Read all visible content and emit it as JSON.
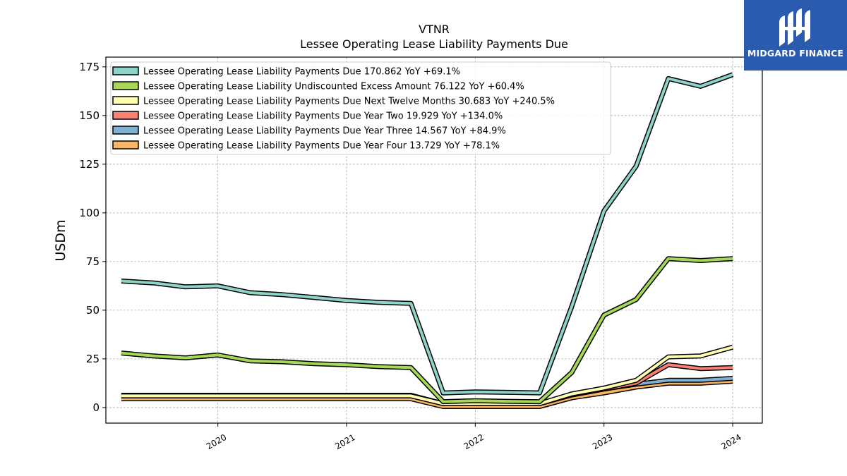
{
  "brand": {
    "name": "MIDGARD FINANCE",
    "bg_color": "#2a5bae"
  },
  "chart_data": {
    "type": "line",
    "title": "VTNR",
    "subtitle": "Lessee Operating Lease Liability Payments Due",
    "ylabel": "USDm",
    "xlabel": "",
    "ylim": [
      -8,
      180
    ],
    "xlim": [
      2019.13,
      2024.23
    ],
    "yticks": [
      0,
      25,
      50,
      75,
      100,
      125,
      150,
      175
    ],
    "xticks": [
      {
        "value": 2020.0,
        "label": "2020"
      },
      {
        "value": 2021.0,
        "label": "2021"
      },
      {
        "value": 2022.0,
        "label": "2022"
      },
      {
        "value": 2023.0,
        "label": "2023"
      },
      {
        "value": 2024.0,
        "label": "2024"
      }
    ],
    "grid": true,
    "legend_position": "top-left",
    "x": [
      2019.25,
      2019.5,
      2019.75,
      2020.0,
      2020.25,
      2020.5,
      2020.75,
      2021.0,
      2021.25,
      2021.5,
      2021.75,
      2022.0,
      2022.25,
      2022.5,
      2022.75,
      2023.0,
      2023.25,
      2023.5,
      2023.75,
      2024.0
    ],
    "series": [
      {
        "name": "Lessee Operating Lease Liability Payments Due",
        "legend": "Lessee Operating Lease Liability Payments Due  170.862 YoY +69.1%",
        "color": "#8dd3c7",
        "values": [
          65,
          64,
          62,
          62.5,
          59,
          58,
          56.5,
          55,
          54,
          53.5,
          7.5,
          8,
          7.8,
          7.5,
          52,
          101,
          124,
          169,
          165,
          171
        ]
      },
      {
        "name": "Lessee Operating Lease Liability Undiscounted Excess Amount",
        "legend": "Lessee Operating Lease Liability Undiscounted Excess Amount  76.122 YoY +60.4%",
        "color": "#a6d854",
        "values": [
          28,
          26.5,
          25.5,
          27,
          24,
          23.5,
          22.5,
          22,
          21,
          20.5,
          3,
          3.5,
          3.2,
          3,
          18,
          47.5,
          55.5,
          76.5,
          75.5,
          76.5
        ]
      },
      {
        "name": "Lessee Operating Lease Liability Payments Due Next Twelve Months",
        "legend": "Lessee Operating Lease Liability Payments Due Next Twelve Months  30.683 YoY +240.5%",
        "color": "#ffffb3",
        "values": [
          6,
          6,
          6,
          6,
          6,
          6,
          6,
          6,
          6,
          6,
          2,
          2,
          2,
          2,
          7,
          10,
          14,
          26,
          26.5,
          31
        ]
      },
      {
        "name": "Lessee Operating Lease Liability Payments Due Year Two",
        "legend": "Lessee Operating Lease Liability Payments Due Year Two  19.929 YoY +134.0%",
        "color": "#fb8072",
        "values": [
          6,
          6,
          6,
          6,
          6,
          6,
          6,
          6,
          6,
          6,
          2,
          2,
          2,
          2,
          6.5,
          9.5,
          12.5,
          22,
          20,
          20.5
        ]
      },
      {
        "name": "Lessee Operating Lease Liability Payments Due Year Three",
        "legend": "Lessee Operating Lease Liability Payments Due Year Three  14.567 YoY +84.9%",
        "color": "#80b1d3",
        "values": [
          6.3,
          6.3,
          6.3,
          6.3,
          6.3,
          6.3,
          6.3,
          6.3,
          6.3,
          6.3,
          2,
          2,
          2,
          2,
          6.5,
          9.5,
          12,
          14,
          14,
          15
        ]
      },
      {
        "name": "Lessee Operating Lease Liability Payments Due Year Four",
        "legend": "Lessee Operating Lease Liability Payments Due Year Four  13.729 YoY +78.1%",
        "color": "#fdb462",
        "values": [
          4.5,
          4.5,
          4.5,
          4.5,
          4.5,
          4.5,
          4.5,
          4.5,
          4.5,
          4.5,
          0.5,
          0.5,
          0.5,
          0.5,
          5,
          7.5,
          10.5,
          12.5,
          12.5,
          13.5
        ]
      }
    ]
  }
}
